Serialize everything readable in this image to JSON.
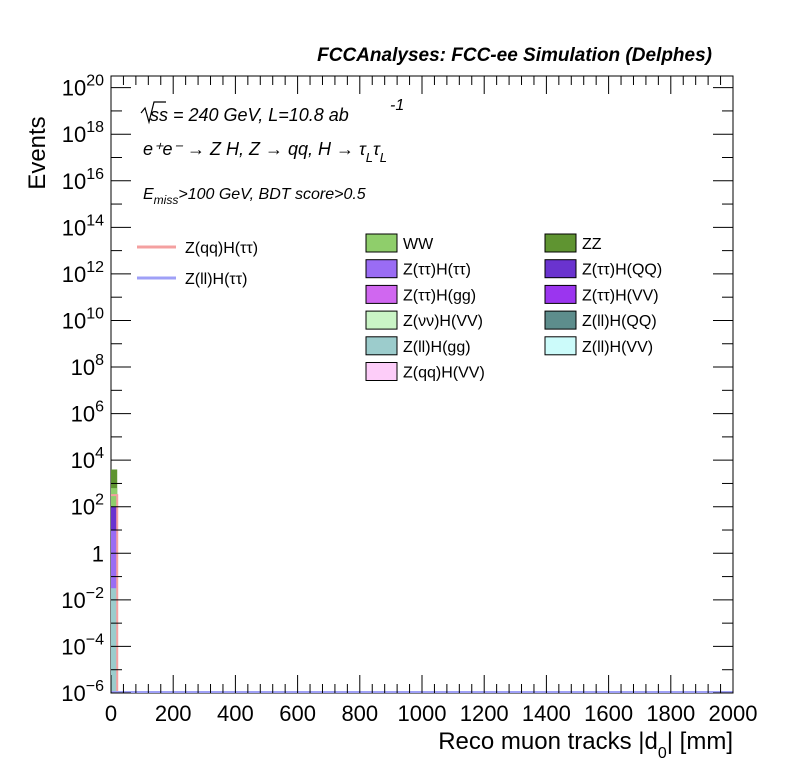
{
  "chart_data": {
    "type": "bar",
    "title": "FCCAnalyses: FCC-ee Simulation (Delphes)",
    "xlabel": "Reco muon tracks |d",
    "xlabel_sub": "0",
    "xlabel_tail": "| [mm]",
    "ylabel": "Events",
    "xlim": [
      0,
      2000
    ],
    "ylim_log10": [
      -6,
      20.5
    ],
    "log_y": true,
    "x_ticks": [
      0,
      200,
      400,
      600,
      800,
      1000,
      1200,
      1400,
      1600,
      1800,
      2000
    ],
    "y_ticks": [
      {
        "exp": 20,
        "base": "10",
        "sup": "20"
      },
      {
        "exp": 18,
        "base": "10",
        "sup": "18"
      },
      {
        "exp": 16,
        "base": "10",
        "sup": "16"
      },
      {
        "exp": 14,
        "base": "10",
        "sup": "14"
      },
      {
        "exp": 12,
        "base": "10",
        "sup": "12"
      },
      {
        "exp": 10,
        "base": "10",
        "sup": "10"
      },
      {
        "exp": 8,
        "base": "10",
        "sup": "8"
      },
      {
        "exp": 6,
        "base": "10",
        "sup": "6"
      },
      {
        "exp": 4,
        "base": "10",
        "sup": "4"
      },
      {
        "exp": 2,
        "base": "10",
        "sup": "2"
      },
      {
        "exp": 0,
        "base": "1",
        "sup": ""
      },
      {
        "exp": -2,
        "base": "10",
        "sup": "−2"
      },
      {
        "exp": -4,
        "base": "10",
        "sup": "−4"
      },
      {
        "exp": -6,
        "base": "10",
        "sup": "−6"
      }
    ],
    "annotations": {
      "line1_a": "s = 240 GeV, L=10.8 ab",
      "line1_sup": "-1",
      "line2": "e⁺e⁻ → Z H, Z → qq, H → τ",
      "line2_sub1": "L",
      "line2_tau2": "τ",
      "line2_sub2": "L",
      "line3_a": "E",
      "line3_sub": "miss",
      "line3_b": ">100 GeV, BDT score>0.5"
    },
    "signal_legend": [
      {
        "name": "Z(qq)H(ττ)",
        "color": "#f4a0a0"
      },
      {
        "name": "Z(ll)H(ττ)",
        "color": "#9fa0f7"
      }
    ],
    "background_legend": [
      {
        "name": "WW",
        "color": "#8fce6b"
      },
      {
        "name": "ZZ",
        "color": "#5f9431"
      },
      {
        "name": "Z(ττ)H(ττ)",
        "color": "#9a6cf4"
      },
      {
        "name": "Z(ττ)H(QQ)",
        "color": "#6a33cf"
      },
      {
        "name": "Z(ττ)H(gg)",
        "color": "#d067f0"
      },
      {
        "name": "Z(ττ)H(VV)",
        "color": "#9b35ef"
      },
      {
        "name": "Z(νν)H(VV)",
        "color": "#caf5c6"
      },
      {
        "name": "Z(ll)H(QQ)",
        "color": "#5d8d8c"
      },
      {
        "name": "Z(ll)H(gg)",
        "color": "#9ccccc"
      },
      {
        "name": "Z(ll)H(VV)",
        "color": "#ccfbfa"
      },
      {
        "name": "Z(qq)H(VV)",
        "color": "#fdcdf9"
      }
    ],
    "stack_bin": {
      "x_range": [
        0,
        20
      ],
      "layers": [
        {
          "name": "Z(ll)H(gg)",
          "log10_top": -1.5
        },
        {
          "name": "Z(ττ)H(ττ)",
          "log10_top": 1.0
        },
        {
          "name": "Z(ττ)H(QQ)",
          "log10_top": 2.0
        },
        {
          "name": "WW",
          "log10_top": 2.8
        },
        {
          "name": "ZZ",
          "log10_top": 3.6
        }
      ]
    },
    "signal_bin": [
      {
        "name": "Z(qq)H(ττ)",
        "x_range": [
          0,
          20
        ],
        "log10_top": 2.5
      },
      {
        "name": "Z(ll)H(ττ)",
        "x_range": [
          0,
          2000
        ],
        "log10_top": -6
      }
    ]
  }
}
